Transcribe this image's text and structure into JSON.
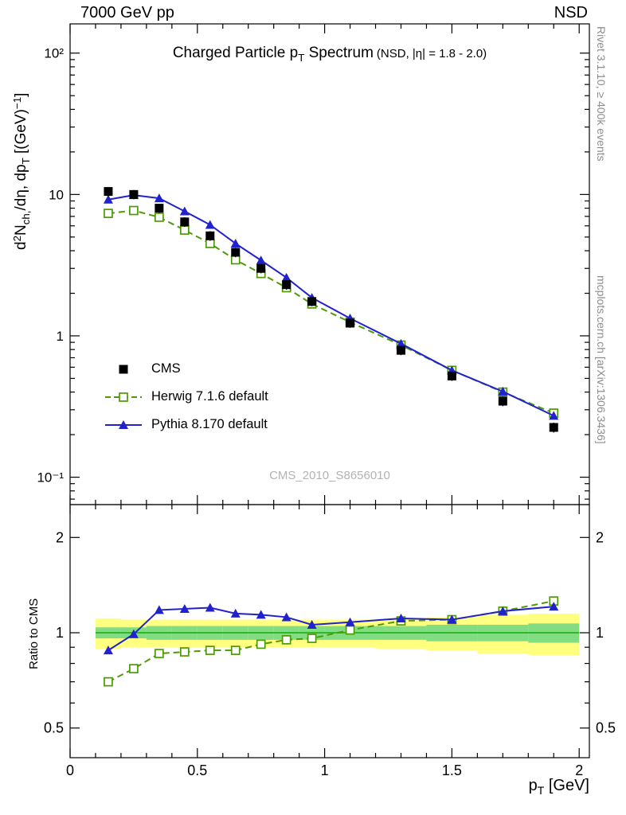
{
  "header": {
    "left": "7000 GeV pp",
    "right": "NSD"
  },
  "title": {
    "p1": "Charged Particle p",
    "sub": "T",
    "p2": " Spectrum",
    "cond": "(NSD, |η| = 1.8 - 2.0)"
  },
  "ylabel": {
    "p1": "d",
    "p2": "2",
    "p3": "N",
    "p4": "ch,",
    "p5": "/dη, dp",
    "p6": "T",
    "p7": " [(GeV)",
    "p8": "−1",
    "p9": "]"
  },
  "ratio_ylabel": "Ratio to CMS",
  "xlabel": {
    "p1": "p",
    "sub": "T",
    "p2": " [GeV]"
  },
  "side_notes": {
    "top": "Rivet 3.1.10, ≥ 400k events",
    "bottom": "mcplots.cern.ch [arXiv:1306.3436]"
  },
  "watermark": "CMS_2010_S8656010",
  "legend": [
    {
      "label": "CMS",
      "marker": "square-filled",
      "color": "#000000",
      "line": "none"
    },
    {
      "label": "Herwig 7.1.6 default",
      "marker": "square-open",
      "color": "#4e9a06",
      "line": "dashed"
    },
    {
      "label": "Pythia 8.170 default",
      "marker": "triangle-filled",
      "color": "#2222cc",
      "line": "solid"
    }
  ],
  "chart_data": {
    "type": "line",
    "title": "Charged Particle pT Spectrum (NSD, |eta| = 1.8 - 2.0)",
    "xlabel": "pT [GeV]",
    "xlim": [
      0,
      2.04
    ],
    "xticks_major": [
      0,
      0.5,
      1,
      1.5,
      2
    ],
    "xtick_labels": [
      "0",
      "0.5",
      "1",
      "1.5",
      "2"
    ],
    "xticks_minor_step": 0.1,
    "x": [
      0.15,
      0.25,
      0.35,
      0.45,
      0.55,
      0.65,
      0.75,
      0.85,
      0.95,
      1.1,
      1.3,
      1.5,
      1.7,
      1.9
    ],
    "main_panel": {
      "ylabel": "d2N_ch/deta, dpT [(GeV)-1]",
      "yscale": "log",
      "ylim": [
        0.064,
        161
      ],
      "yticks": [
        {
          "value": 0.1,
          "label": "10⁻¹"
        },
        {
          "value": 1,
          "label": "1"
        },
        {
          "value": 10,
          "label": "10"
        },
        {
          "value": 100,
          "label": "10²"
        }
      ],
      "series": [
        {
          "name": "CMS",
          "marker": "square-filled",
          "color": "#000000",
          "line": "none",
          "y": [
            10.5,
            10.0,
            8.0,
            6.4,
            5.1,
            3.9,
            3.0,
            2.3,
            1.75,
            1.23,
            0.79,
            0.52,
            0.345,
            0.225
          ],
          "yerr": [
            0.8,
            0.75,
            0.6,
            0.5,
            0.4,
            0.3,
            0.23,
            0.18,
            0.13,
            0.09,
            0.06,
            0.04,
            0.027,
            0.018
          ]
        },
        {
          "name": "Herwig 7.1.6 default",
          "marker": "square-open",
          "color": "#4e9a06",
          "line": "dashed",
          "y": [
            7.35,
            7.7,
            6.9,
            5.6,
            4.5,
            3.45,
            2.76,
            2.19,
            1.68,
            1.25,
            0.86,
            0.57,
            0.4,
            0.284
          ]
        },
        {
          "name": "Pythia 8.170 default",
          "marker": "triangle-filled",
          "color": "#2222cc",
          "line": "solid",
          "y": [
            9.2,
            9.9,
            9.4,
            7.6,
            6.1,
            4.5,
            3.42,
            2.58,
            1.86,
            1.33,
            0.88,
            0.57,
            0.404,
            0.272
          ]
        }
      ]
    },
    "ratio_panel": {
      "ylabel": "Ratio to CMS",
      "yscale": "log",
      "ylim": [
        0.403,
        2.54
      ],
      "yticks": [
        {
          "value": 0.5,
          "label": "0.5"
        },
        {
          "value": 1,
          "label": "1"
        },
        {
          "value": 2,
          "label": "2"
        }
      ],
      "yticks_minor": [
        0.6,
        0.7,
        0.8,
        0.9
      ],
      "reference_line": 1,
      "reference_color": "#2eb82e",
      "series": [
        {
          "name": "Herwig 7.1.6 default",
          "marker": "square-open",
          "color": "#4e9a06",
          "line": "dashed",
          "y": [
            0.7,
            0.77,
            0.86,
            0.87,
            0.88,
            0.88,
            0.92,
            0.95,
            0.96,
            1.02,
            1.09,
            1.1,
            1.17,
            1.26
          ]
        },
        {
          "name": "Pythia 8.170 default",
          "marker": "triangle-filled",
          "color": "#2222cc",
          "line": "solid",
          "y": [
            0.88,
            0.99,
            1.18,
            1.19,
            1.2,
            1.15,
            1.14,
            1.12,
            1.06,
            1.08,
            1.11,
            1.1,
            1.17,
            1.21
          ]
        }
      ],
      "bands": {
        "bin_edges": [
          0.1,
          0.2,
          0.3,
          0.4,
          0.5,
          0.6,
          0.7,
          0.8,
          0.9,
          1.0,
          1.2,
          1.4,
          1.6,
          1.8,
          2.0
        ],
        "outer_color": "#ffff80",
        "inner_color": "#82dd82",
        "outer_lo": [
          0.89,
          0.9,
          0.9,
          0.9,
          0.9,
          0.9,
          0.9,
          0.9,
          0.9,
          0.9,
          0.89,
          0.88,
          0.86,
          0.85
        ],
        "outer_hi": [
          1.11,
          1.1,
          1.1,
          1.1,
          1.1,
          1.1,
          1.1,
          1.1,
          1.1,
          1.1,
          1.11,
          1.12,
          1.14,
          1.15
        ],
        "inner_lo": [
          0.96,
          0.96,
          0.95,
          0.95,
          0.95,
          0.95,
          0.95,
          0.95,
          0.95,
          0.95,
          0.95,
          0.94,
          0.94,
          0.93
        ],
        "inner_hi": [
          1.04,
          1.04,
          1.05,
          1.05,
          1.05,
          1.05,
          1.05,
          1.05,
          1.05,
          1.05,
          1.05,
          1.06,
          1.06,
          1.07
        ]
      }
    }
  }
}
